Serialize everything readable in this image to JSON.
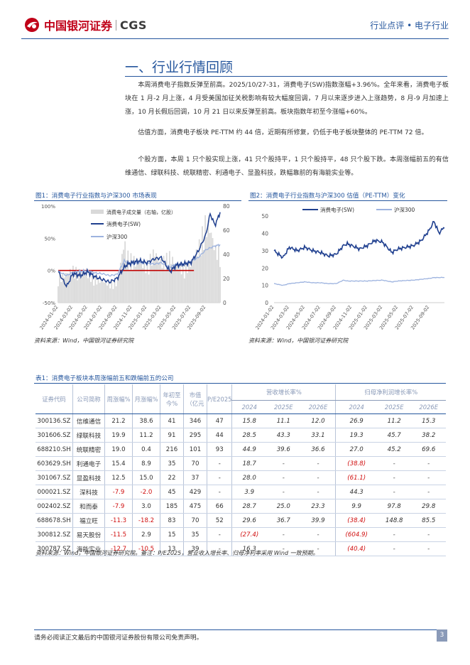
{
  "header": {
    "brand": "中国银河证券",
    "brand_en": "CGS",
    "category": "行业点评 • 电子行业"
  },
  "section_title": "一、行业行情回顾",
  "paragraphs": [
    "本周消费电子指数反弹至前高。2025/10/27-31，消费电子(SW)指数涨幅+3.96%。全年来看，消费电子板块在 1 月-2 月上涨，4 月受美国加征关税影响有较大幅度回调，7 月以来逐步进入上涨趋势，8 月-9 月加速上涨，10 月长假后回调，10 月 21 日以来反弹至前高。板块指数年初至今涨幅+60%。",
    "估值方面，消费电子板块 PE-TTM 约 44 倍，近期有所修复，仍低于电子板块整体的 PE-TTM 72 倍。",
    "个股方面，本周 1 只个股实现上涨，41 只个股持平，1 只个股持平，48 只个股下跌。本周涨幅前五的有信维通信、绿联科技、统联精密、利通电子、显盈科技，跌幅靠前的有海能实业等。"
  ],
  "fig1": {
    "title": "图1：消费电子行业指数与沪深300 市场表现",
    "source": "资料来源：Wind，中国银河证券研究院",
    "legend": [
      "消费电子成交量（右轴，亿股）",
      "消费电子(SW)",
      "沪深300"
    ],
    "y_left_ticks": [
      "100%",
      "50%",
      "0%",
      "-50%"
    ],
    "y_right_ticks": [
      "80",
      "60",
      "40",
      "20",
      "0"
    ],
    "x_ticks": [
      "2024-01-02",
      "2024-03-02",
      "2024-05-02",
      "2024-07-02",
      "2024-09-02",
      "2024-11-02",
      "2025-01-02",
      "2025-03-02",
      "2025-05-02",
      "2025-07-02",
      "2025-09-02"
    ],
    "colors": {
      "volume": "#d9d9d9",
      "index": "#1f3f8f",
      "hs300": "#9db3df",
      "zero": "#c00000"
    }
  },
  "fig2": {
    "title": "图2：消费电子行业指数与沪深300 估值（PE-TTM）变化",
    "source": "资料来源：Wind，中国银河证券研究院",
    "legend": [
      "消费电子(SW)",
      "沪深300"
    ],
    "y_ticks": [
      "50",
      "40",
      "30",
      "20",
      "10",
      "0"
    ],
    "x_ticks": [
      "2024-01-02",
      "2024-03-02",
      "2024-05-02",
      "2024-07-02",
      "2024-09-02",
      "2024-11-02",
      "2025-01-02",
      "2025-03-02",
      "2025-05-02",
      "2025-07-02",
      "2025-09-02"
    ],
    "colors": {
      "index": "#1f3f8f",
      "hs300": "#9db3df"
    }
  },
  "chart_data": [
    {
      "type": "line",
      "title": "图1：消费电子行业指数与沪深300 市场表现",
      "x": [
        "2024-01-02",
        "2024-02-06",
        "2024-03-02",
        "2024-04-02",
        "2024-05-02",
        "2024-06-02",
        "2024-07-02",
        "2024-08-02",
        "2024-09-02",
        "2024-09-30",
        "2024-10-15",
        "2024-11-02",
        "2024-12-02",
        "2025-01-02",
        "2025-02-02",
        "2025-03-02",
        "2025-04-08",
        "2025-05-02",
        "2025-06-02",
        "2025-07-02",
        "2025-08-02",
        "2025-09-02",
        "2025-09-20",
        "2025-10-10",
        "2025-10-31"
      ],
      "series": [
        {
          "name": "消费电子(SW)",
          "axis": "left",
          "unit": "%",
          "values": [
            -2,
            -25,
            -5,
            -8,
            -2,
            -10,
            -14,
            -18,
            -12,
            5,
            10,
            12,
            15,
            12,
            18,
            20,
            -2,
            8,
            10,
            12,
            30,
            55,
            88,
            70,
            90
          ]
        },
        {
          "name": "沪深300",
          "axis": "left",
          "unit": "%",
          "values": [
            -1,
            -8,
            -3,
            -1,
            0,
            -4,
            -5,
            -8,
            -6,
            15,
            12,
            10,
            12,
            11,
            10,
            12,
            5,
            10,
            11,
            14,
            20,
            32,
            35,
            38,
            40
          ]
        },
        {
          "name": "消费电子成交量（右轴，亿股）",
          "axis": "right",
          "values": [
            18,
            22,
            25,
            22,
            20,
            18,
            16,
            14,
            15,
            45,
            35,
            32,
            30,
            28,
            38,
            30,
            35,
            28,
            26,
            30,
            40,
            60,
            55,
            40,
            38
          ]
        }
      ],
      "ylim_left": [
        -50,
        100
      ],
      "ylim_right": [
        0,
        80
      ],
      "reference_line": 0
    },
    {
      "type": "line",
      "title": "图2：消费电子行业指数与沪深300 估值（PE-TTM）变化",
      "x": [
        "2024-01-02",
        "2024-02-06",
        "2024-03-02",
        "2024-04-02",
        "2024-05-02",
        "2024-06-02",
        "2024-07-02",
        "2024-08-02",
        "2024-09-02",
        "2024-09-30",
        "2024-10-15",
        "2024-11-02",
        "2024-12-02",
        "2025-01-02",
        "2025-02-02",
        "2025-03-02",
        "2025-04-08",
        "2025-05-02",
        "2025-06-02",
        "2025-07-02",
        "2025-08-02",
        "2025-09-02",
        "2025-09-20",
        "2025-10-10",
        "2025-10-31"
      ],
      "series": [
        {
          "name": "消费电子(SW)",
          "values": [
            30,
            26,
            32,
            30,
            32,
            30,
            29,
            27,
            28,
            33,
            34,
            33,
            31,
            33,
            36,
            35,
            29,
            31,
            32,
            33,
            36,
            42,
            47,
            40,
            44
          ]
        },
        {
          "name": "沪深300",
          "values": [
            11,
            10,
            11,
            11.5,
            12,
            11.5,
            11.5,
            11,
            11,
            13,
            12.5,
            12.5,
            12.5,
            12.5,
            12.8,
            13,
            12,
            12.5,
            12.8,
            13,
            13.5,
            14,
            14.5,
            14.5,
            14.6
          ]
        }
      ],
      "ylim": [
        0,
        55
      ]
    }
  ],
  "table": {
    "title": "表1：消费电子板块本周涨幅前五和跌幅前五的公司",
    "headers": {
      "code": "证券代码",
      "name": "公司简称",
      "week": "周涨幅%",
      "month": "月涨幅%",
      "ytd": "年初至今%",
      "mcap": "市值（亿元",
      "pe": "P/E2025",
      "rev_group": "营收增长率%",
      "np_group": "归母净利润增长率%",
      "years": [
        "2024",
        "2025E",
        "2026E"
      ]
    },
    "rows": [
      [
        "300136.SZ",
        "信维通信",
        "21.2",
        "38.6",
        "41",
        "346",
        "47",
        "15.8",
        "11.1",
        "12.0",
        "26.9",
        "11.2",
        "15.3"
      ],
      [
        "301606.SZ",
        "绿联科技",
        "19.9",
        "11.2",
        "91",
        "295",
        "44",
        "28.5",
        "43.3",
        "33.1",
        "19.3",
        "45.7",
        "38.2"
      ],
      [
        "688210.SH",
        "统联精密",
        "19.0",
        "0.4",
        "216",
        "101",
        "93",
        "44.9",
        "39.6",
        "36.6",
        "27.0",
        "45.2",
        "69.6"
      ],
      [
        "603629.SH",
        "利通电子",
        "15.4",
        "8.9",
        "35",
        "70",
        "-",
        "18.7",
        "-",
        "-",
        "(38.8)",
        "-",
        "-"
      ],
      [
        "301067.SZ",
        "显盈科技",
        "12.5",
        "15.0",
        "22",
        "37",
        "-",
        "28.0",
        "-",
        "-",
        "(61.1)",
        "-",
        "-"
      ],
      [
        "000021.SZ",
        "深科技",
        "-7.9",
        "-2.0",
        "45",
        "429",
        "-",
        "3.9",
        "-",
        "-",
        "44.3",
        "-",
        "-"
      ],
      [
        "002402.SZ",
        "和而泰",
        "-7.9",
        "3.0",
        "185",
        "475",
        "66",
        "28.7",
        "25.0",
        "23.3",
        "9.9",
        "97.8",
        "29.8"
      ],
      [
        "688678.SH",
        "福立旺",
        "-11.3",
        "-18.2",
        "83",
        "70",
        "52",
        "29.6",
        "36.7",
        "39.9",
        "(38.4)",
        "148.8",
        "85.5"
      ],
      [
        "300812.SZ",
        "易天股份",
        "-11.5",
        "2.9",
        "15",
        "35",
        "-",
        "(27.4)",
        "-",
        "-",
        "(604.9)",
        "-",
        "-"
      ],
      [
        "300787.SZ",
        "海能实业",
        "-12.7",
        "-10.5",
        "13",
        "39",
        "-",
        "16.3",
        "-",
        "-",
        "(40.4)",
        "-",
        "-"
      ]
    ],
    "source": "资料来源：Wind，中国银河证券研究院。备注：P/E2025，营业收入增长率、归母净利率采用 Wind 一致预期。"
  },
  "footer": {
    "disclaimer": "请务必阅读正文最后的中国银河证券股份有限公司免责声明。",
    "page": "3"
  }
}
